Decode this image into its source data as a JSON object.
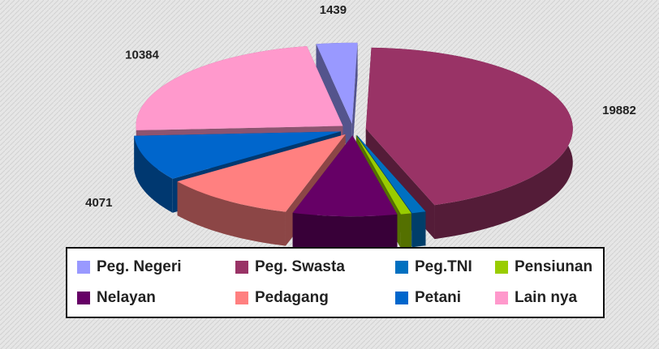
{
  "chart_data": {
    "type": "pie",
    "categories": [
      "Peg. Negeri",
      "Peg. Swasta",
      "Peg.TNI",
      "Pensiunan",
      "Nelayan",
      "Pedagang",
      "Petani",
      "Lain nya"
    ],
    "values": [
      1439,
      19882,
      491,
      373,
      3659,
      4690,
      4071,
      10384
    ],
    "colors": [
      "#9999ff",
      "#993366",
      "#0070c0",
      "#99cc00",
      "#660066",
      "#ff8080",
      "#0066cc",
      "#ff99cc"
    ],
    "legend": "bottom"
  }
}
